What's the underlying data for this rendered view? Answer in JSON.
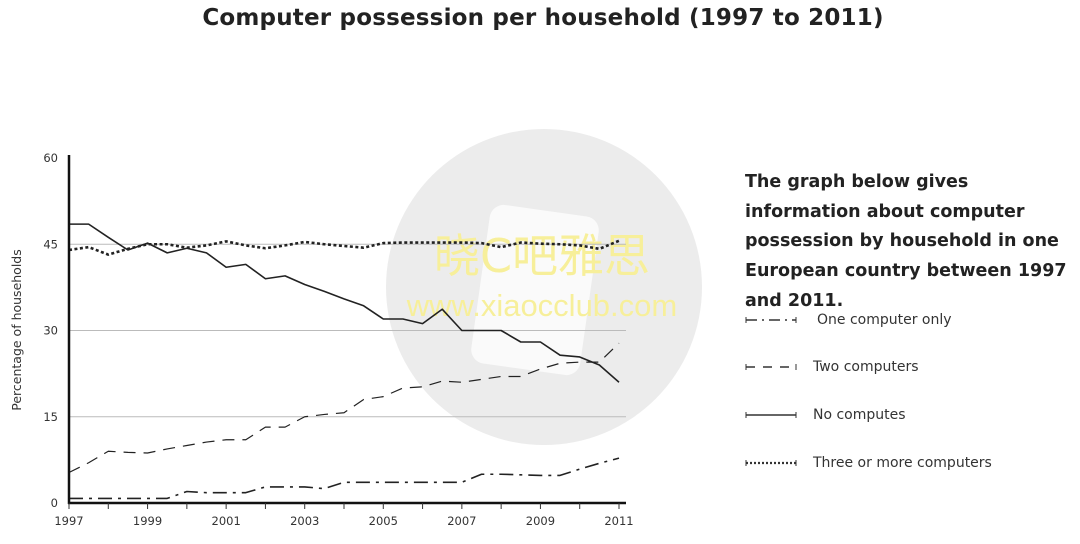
{
  "chart_data": {
    "type": "line",
    "title": "Computer possession per household (1997 to 2011)",
    "xlabel": "",
    "ylabel": "Percentage of households",
    "xlim": [
      1997,
      2011
    ],
    "ylim": [
      0,
      60
    ],
    "yticks": [
      "0",
      "15",
      "30",
      "45",
      "60"
    ],
    "xticks": [
      "1997",
      "1999",
      "2001",
      "2003",
      "2005",
      "2007",
      "2009",
      "2011"
    ],
    "grid": "horizontal",
    "legend_position": "right",
    "x": [
      1997,
      1997.5,
      1998,
      1998.5,
      1999,
      1999.5,
      2000,
      2000.5,
      2001,
      2001.5,
      2002,
      2002.5,
      2003,
      2003.5,
      2004,
      2004.5,
      2005,
      2005.5,
      2006,
      2006.5,
      2007,
      2007.5,
      2008,
      2008.5,
      2009,
      2009.5,
      2010,
      2010.5,
      2011
    ],
    "series": [
      {
        "name": "One computer only",
        "dash": "dashdot",
        "values": [
          0.8,
          0.8,
          0.8,
          0.8,
          0.8,
          0.8,
          2,
          1.8,
          1.8,
          1.8,
          2.8,
          2.8,
          2.8,
          2.5,
          3.6,
          3.6,
          3.6,
          3.6,
          3.6,
          3.6,
          3.6,
          5,
          5,
          4.9,
          4.8,
          4.8,
          5.9,
          6.9,
          7.8
        ]
      },
      {
        "name": "Two computers",
        "dash": "dashed",
        "values": [
          5.3,
          7,
          9,
          8.8,
          8.7,
          9.4,
          10,
          10.6,
          11,
          11,
          13.2,
          13.2,
          15,
          15.4,
          15.7,
          18,
          18.5,
          20,
          20.2,
          21.2,
          21,
          21.5,
          22,
          22,
          23.3,
          24.3,
          24.5,
          24.5,
          27.8
        ]
      },
      {
        "name": "No computes",
        "dash": "solid",
        "values": [
          48.5,
          48.5,
          46.2,
          44,
          45.2,
          43.5,
          44.3,
          43.5,
          41,
          41.5,
          39,
          39.5,
          38,
          36.8,
          35.5,
          34.3,
          32,
          32,
          31.2,
          33.7,
          30,
          30,
          30,
          28,
          28,
          25.7,
          25.4,
          24,
          21
        ]
      },
      {
        "name": "Three or more computers",
        "dash": "dotted",
        "values": [
          44,
          44.5,
          43.2,
          44.2,
          45,
          45,
          44.4,
          44.8,
          45.5,
          44.8,
          44.3,
          44.8,
          45.4,
          45,
          44.7,
          44.4,
          45.2,
          45.3,
          45.3,
          45.3,
          45.3,
          45.2,
          44.5,
          45.3,
          45.1,
          45,
          44.8,
          44.2,
          45.6
        ]
      }
    ]
  },
  "description": "The graph below gives information about computer possession by household in one European country between 1997 and 2011.",
  "watermark": {
    "line1": "晓C吧雅思",
    "line2": "www.xiaocclub.com"
  },
  "colors": {
    "line": "#222222",
    "grid": "#bbbbbb",
    "watermark_text": "#f7ef9a",
    "watermark_circle": "#ececec"
  }
}
